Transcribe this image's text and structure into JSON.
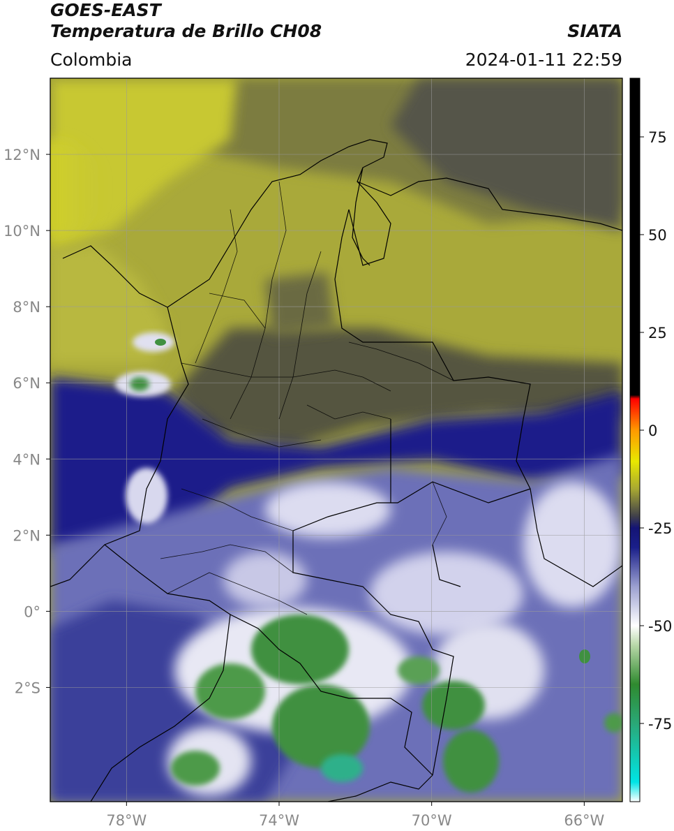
{
  "header": {
    "satellite": "GOES-EAST",
    "product": "Temperatura de Brillo CH08",
    "region": "Colombia",
    "organization": "SIATA",
    "timestamp": "2024-01-11 22:59"
  },
  "map": {
    "lat_ticks": [
      {
        "label": "12°N",
        "lat": 12
      },
      {
        "label": "10°N",
        "lat": 10
      },
      {
        "label": "8°N",
        "lat": 8
      },
      {
        "label": "6°N",
        "lat": 6
      },
      {
        "label": "4°N",
        "lat": 4
      },
      {
        "label": "2°N",
        "lat": 2
      },
      {
        "label": "0°",
        "lat": 0
      },
      {
        "label": "2°S",
        "lat": -2
      }
    ],
    "lon_ticks": [
      {
        "label": "78°W",
        "lon": -78
      },
      {
        "label": "74°W",
        "lon": -74
      },
      {
        "label": "70°W",
        "lon": -70
      },
      {
        "label": "66°W",
        "lon": -66
      }
    ],
    "extent": {
      "lon_min": -80.0,
      "lon_max": -65.0,
      "lat_min": -5.0,
      "lat_max": 14.0
    },
    "gridlines": true
  },
  "colorbar": {
    "ticks": [
      {
        "label": "75",
        "value": 75
      },
      {
        "label": "50",
        "value": 50
      },
      {
        "label": "25",
        "value": 25
      },
      {
        "label": "0",
        "value": 0
      },
      {
        "label": "-25",
        "value": -25
      },
      {
        "label": "-50",
        "value": -50
      },
      {
        "label": "-75",
        "value": -75
      }
    ],
    "range": [
      -95,
      90
    ],
    "stops": [
      {
        "value": -95,
        "color": "#ffffff"
      },
      {
        "value": -90,
        "color": "#00e5e5"
      },
      {
        "value": -75,
        "color": "#2aa877"
      },
      {
        "value": -65,
        "color": "#2f8a2f"
      },
      {
        "value": -55,
        "color": "#b8d8a8"
      },
      {
        "value": -50,
        "color": "#ffffff"
      },
      {
        "value": -40,
        "color": "#9ba0d0"
      },
      {
        "value": -30,
        "color": "#1a1f8a"
      },
      {
        "value": -25,
        "color": "#141475"
      },
      {
        "value": -22,
        "color": "#40404a"
      },
      {
        "value": -15,
        "color": "#a8a832"
      },
      {
        "value": -8,
        "color": "#e8e800"
      },
      {
        "value": 0,
        "color": "#ff9900"
      },
      {
        "value": 8,
        "color": "#ff0000"
      },
      {
        "value": 9,
        "color": "#000000"
      },
      {
        "value": 90,
        "color": "#000000"
      }
    ]
  },
  "colors": {
    "frame": "#000000",
    "grid": "#9a9a9a",
    "tick_label": "#888888",
    "warm_dry": "#c8c832",
    "mid_dry": "#55553f",
    "cold_cloud": "#1a1f8a",
    "very_cold": "#2f8a2f"
  }
}
